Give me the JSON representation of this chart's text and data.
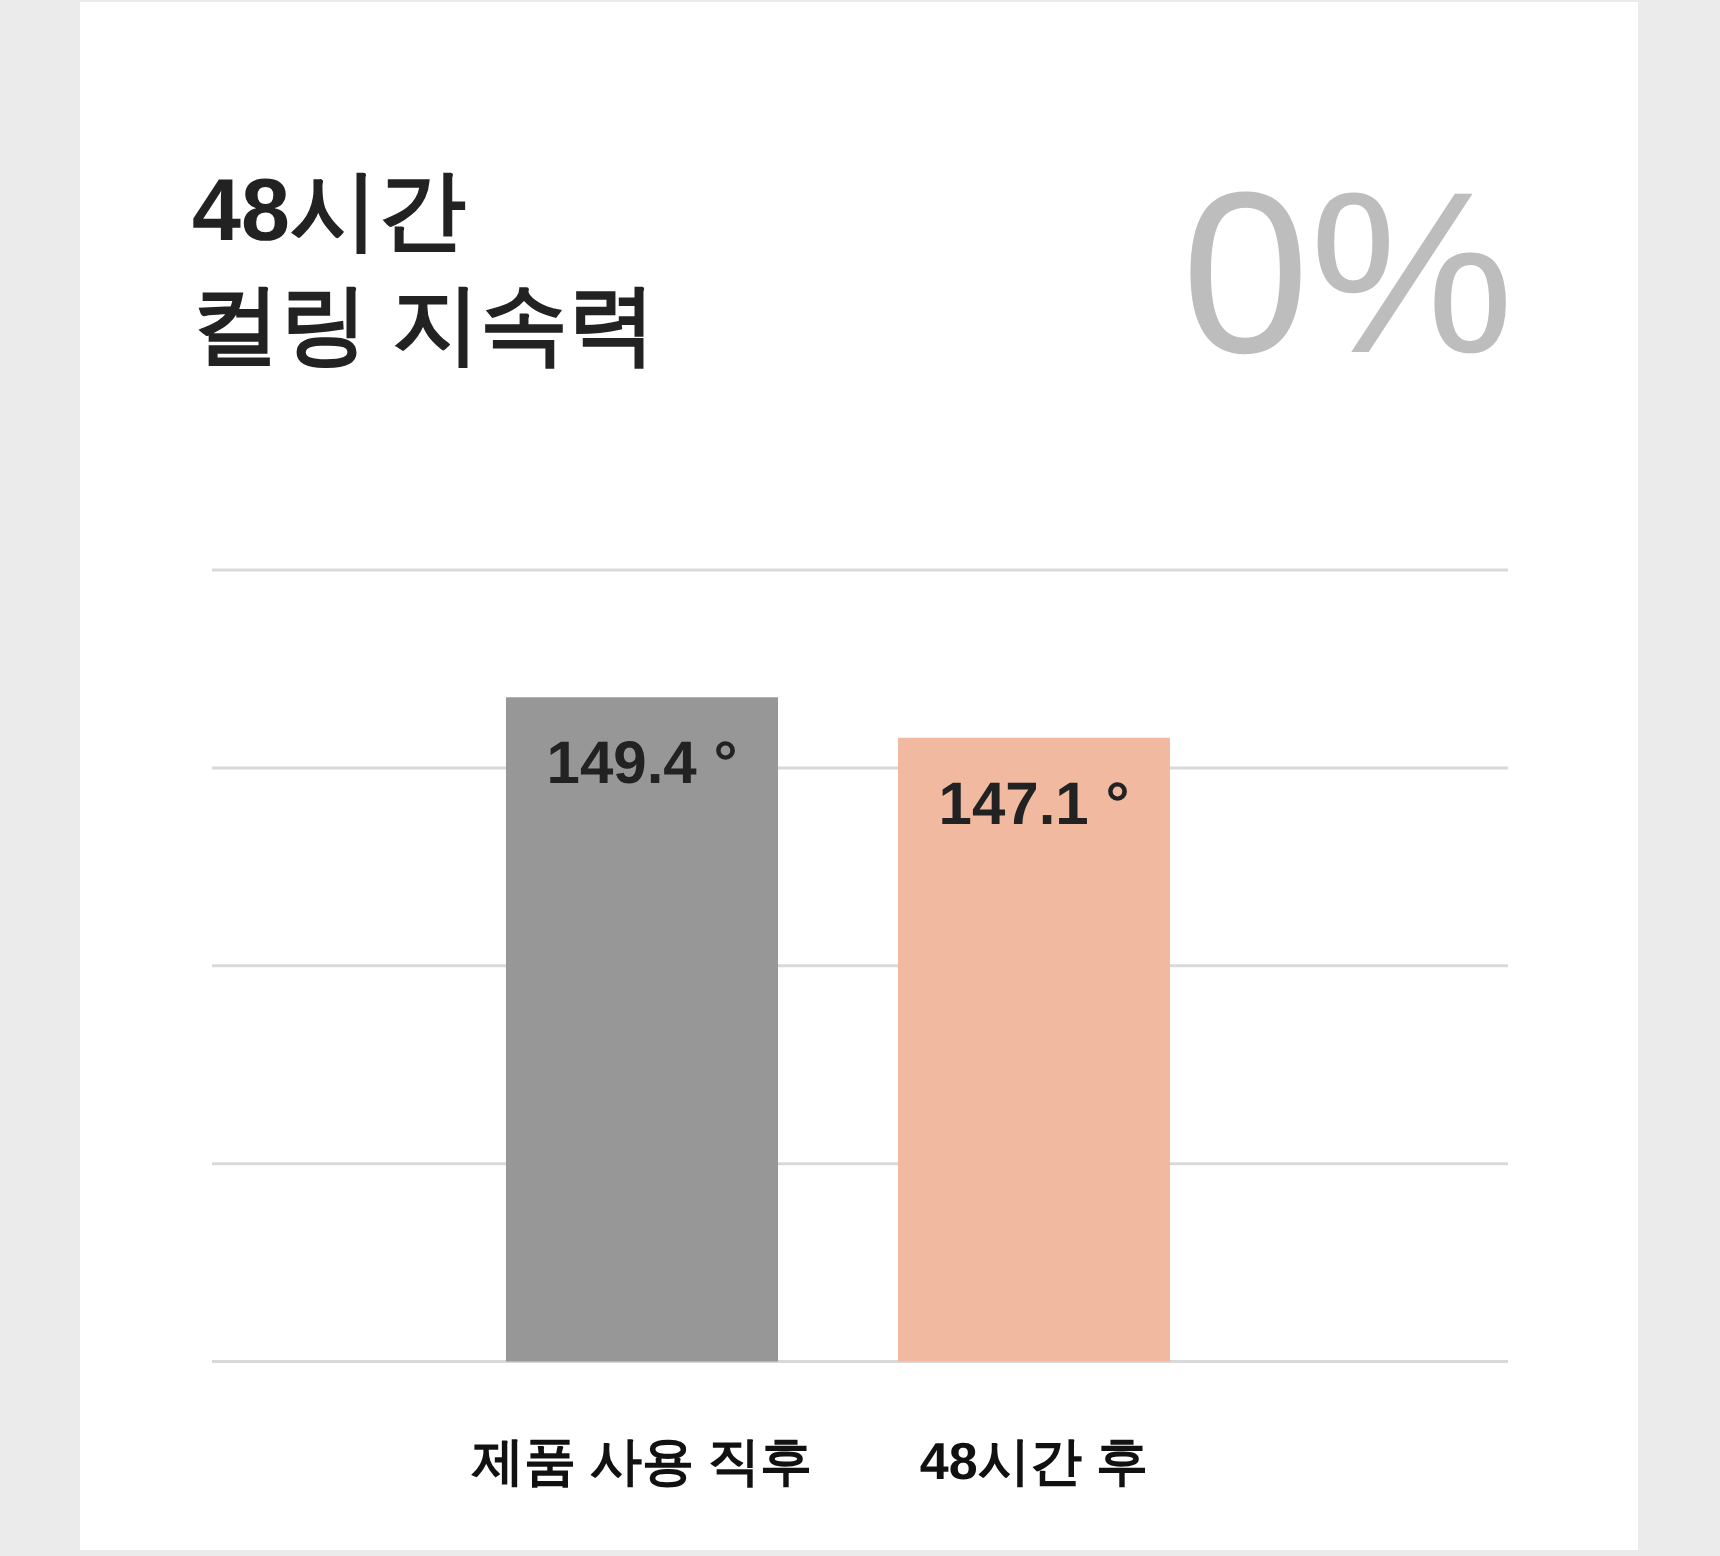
{
  "chart_data": {
    "type": "bar",
    "title": "48시간\n컬링 지속력",
    "annotations": [
      "0%"
    ],
    "categories": [
      "제품 사용 직후",
      "48시간 후"
    ],
    "values": [
      149.4,
      147.1
    ],
    "colors": [
      "#979797",
      "#f2b9a1"
    ],
    "value_labels": [
      "149.4 °",
      "147.1 °"
    ],
    "ylim": [
      111.8,
      156.6
    ],
    "yticks": [
      {
        "value": 111.8,
        "label": null
      },
      {
        "value": 123,
        "label": null
      },
      {
        "value": 134.2,
        "label": null
      },
      {
        "value": 145.4,
        "label": null
      },
      {
        "value": 156.6,
        "label": null
      }
    ],
    "grid": "y",
    "tick_labels": "x"
  }
}
